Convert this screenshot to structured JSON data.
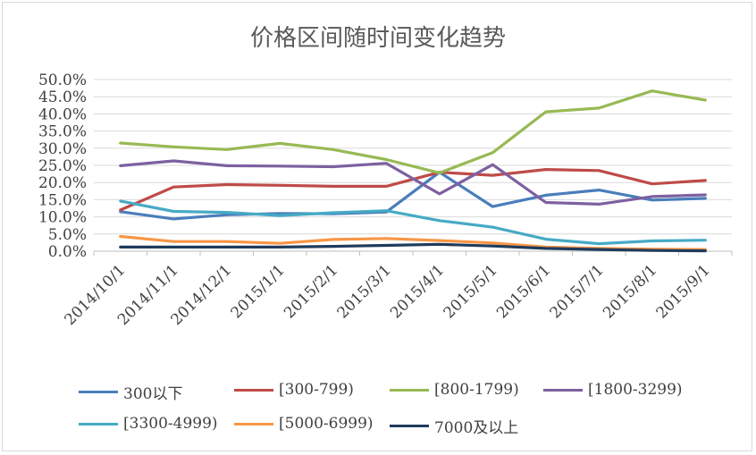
{
  "chart_data": {
    "type": "line",
    "title": "价格区间随时间变化趋势",
    "xlabel": "",
    "ylabel": "",
    "ylim": [
      0,
      0.5
    ],
    "yticks": [
      "0.0%",
      "5.0%",
      "10.0%",
      "15.0%",
      "20.0%",
      "25.0%",
      "30.0%",
      "35.0%",
      "40.0%",
      "45.0%",
      "50.0%"
    ],
    "categories": [
      "2014/10/1",
      "2014/11/1",
      "2014/12/1",
      "2015/1/1",
      "2015/2/1",
      "2015/3/1",
      "2015/4/1",
      "2015/5/1",
      "2015/6/1",
      "2015/7/1",
      "2015/8/1",
      "2015/9/1"
    ],
    "grid": true,
    "legend_position": "bottom",
    "series": [
      {
        "name": "300以下",
        "color": "#4a7ebb",
        "values": [
          0.115,
          0.094,
          0.106,
          0.11,
          0.109,
          0.114,
          0.23,
          0.13,
          0.163,
          0.178,
          0.149,
          0.154
        ]
      },
      {
        "name": "[300-799)",
        "color": "#be4b48",
        "values": [
          0.12,
          0.187,
          0.194,
          0.192,
          0.189,
          0.189,
          0.23,
          0.221,
          0.238,
          0.235,
          0.196,
          0.206
        ]
      },
      {
        "name": "[800-1799)",
        "color": "#98b954",
        "values": [
          0.315,
          0.304,
          0.296,
          0.314,
          0.296,
          0.267,
          0.228,
          0.287,
          0.406,
          0.417,
          0.467,
          0.44
        ]
      },
      {
        "name": "[1800-3299)",
        "color": "#7d60a0",
        "values": [
          0.249,
          0.263,
          0.249,
          0.248,
          0.246,
          0.256,
          0.167,
          0.252,
          0.142,
          0.137,
          0.159,
          0.164
        ]
      },
      {
        "name": "[3300-4999)",
        "color": "#46aac5",
        "values": [
          0.146,
          0.116,
          0.113,
          0.104,
          0.112,
          0.118,
          0.089,
          0.07,
          0.035,
          0.022,
          0.03,
          0.032
        ]
      },
      {
        "name": "[5000-6999)",
        "color": "#f79646",
        "values": [
          0.043,
          0.028,
          0.028,
          0.023,
          0.034,
          0.037,
          0.031,
          0.024,
          0.012,
          0.008,
          0.006,
          0.005
        ]
      },
      {
        "name": "7000及以上",
        "color": "#1f3b5c",
        "values": [
          0.012,
          0.012,
          0.012,
          0.012,
          0.014,
          0.017,
          0.02,
          0.015,
          0.008,
          0.005,
          0.002,
          0.001
        ]
      }
    ]
  }
}
